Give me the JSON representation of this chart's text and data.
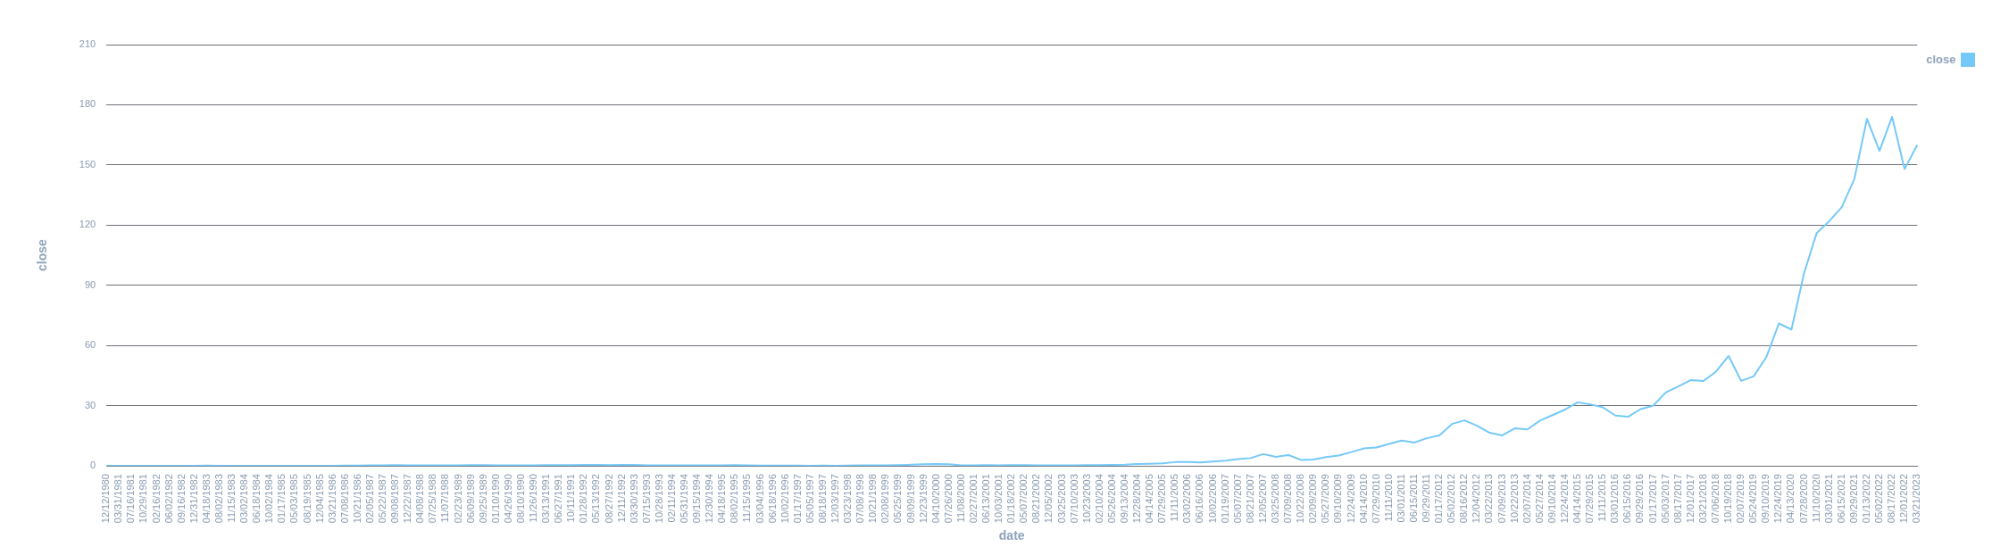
{
  "chart_data": {
    "type": "line",
    "xlabel": "date",
    "ylabel": "close",
    "categories": [
      "12/12/1980",
      "03/31/1981",
      "07/16/1981",
      "10/29/1981",
      "02/16/1982",
      "06/02/1982",
      "09/16/1982",
      "12/31/1982",
      "04/18/1983",
      "08/02/1983",
      "11/15/1983",
      "03/02/1984",
      "06/18/1984",
      "10/02/1984",
      "01/17/1985",
      "05/03/1985",
      "08/19/1985",
      "12/04/1985",
      "03/21/1986",
      "07/08/1986",
      "10/21/1986",
      "02/05/1987",
      "05/22/1987",
      "09/08/1987",
      "12/22/1987",
      "04/08/1988",
      "07/25/1988",
      "11/07/1988",
      "02/23/1989",
      "06/09/1989",
      "09/25/1989",
      "01/10/1990",
      "04/26/1990",
      "08/10/1990",
      "11/26/1990",
      "03/13/1991",
      "06/27/1991",
      "10/11/1991",
      "01/28/1992",
      "05/13/1992",
      "08/27/1992",
      "12/11/1992",
      "03/30/1993",
      "07/15/1993",
      "10/28/1993",
      "02/11/1994",
      "05/31/1994",
      "09/15/1994",
      "12/30/1994",
      "04/18/1995",
      "08/02/1995",
      "11/15/1995",
      "03/04/1996",
      "06/18/1996",
      "10/02/1996",
      "01/17/1997",
      "05/05/1997",
      "08/18/1997",
      "12/03/1997",
      "03/23/1998",
      "07/08/1998",
      "10/21/1998",
      "02/08/1999",
      "05/25/1999",
      "09/09/1999",
      "12/23/1999",
      "04/10/2000",
      "07/26/2000",
      "11/08/2000",
      "02/27/2001",
      "06/13/2001",
      "10/03/2001",
      "01/18/2002",
      "05/07/2002",
      "08/21/2002",
      "12/05/2002",
      "03/25/2003",
      "07/10/2003",
      "10/23/2003",
      "02/10/2004",
      "05/26/2004",
      "09/13/2004",
      "12/28/2004",
      "04/14/2005",
      "07/29/2005",
      "11/11/2005",
      "03/02/2006",
      "06/16/2006",
      "10/02/2006",
      "01/19/2007",
      "05/07/2007",
      "08/21/2007",
      "12/05/2007",
      "03/25/2008",
      "07/09/2008",
      "10/22/2008",
      "02/09/2009",
      "05/27/2009",
      "09/10/2009",
      "12/24/2009",
      "04/14/2010",
      "07/29/2010",
      "11/11/2010",
      "03/01/2011",
      "06/15/2011",
      "09/29/2011",
      "01/17/2012",
      "05/02/2012",
      "08/16/2012",
      "12/04/2012",
      "03/22/2013",
      "07/09/2013",
      "10/22/2013",
      "02/07/2014",
      "05/27/2014",
      "09/10/2014",
      "12/24/2014",
      "04/14/2015",
      "07/29/2015",
      "11/11/2015",
      "03/01/2016",
      "06/15/2016",
      "09/29/2016",
      "01/17/2017",
      "05/03/2017",
      "08/17/2017",
      "12/01/2017",
      "03/21/2018",
      "07/06/2018",
      "10/19/2018",
      "02/07/2019",
      "05/24/2019",
      "09/10/2019",
      "12/24/2019",
      "04/13/2020",
      "07/28/2020",
      "11/10/2020",
      "03/01/2021",
      "06/15/2021",
      "09/29/2021",
      "01/13/2022",
      "05/02/2022",
      "08/17/2022",
      "12/01/2022",
      "03/21/2023"
    ],
    "series": [
      {
        "name": "close",
        "color": "#75c9f8",
        "values": [
          0.1,
          0.1,
          0.1,
          0.1,
          0.1,
          0.1,
          0.1,
          0.1,
          0.2,
          0.1,
          0.1,
          0.1,
          0.1,
          0.1,
          0.1,
          0.1,
          0.1,
          0.1,
          0.1,
          0.2,
          0.2,
          0.3,
          0.3,
          0.4,
          0.3,
          0.3,
          0.3,
          0.3,
          0.3,
          0.4,
          0.4,
          0.3,
          0.3,
          0.3,
          0.3,
          0.4,
          0.4,
          0.4,
          0.5,
          0.5,
          0.4,
          0.5,
          0.5,
          0.3,
          0.3,
          0.3,
          0.3,
          0.3,
          0.3,
          0.3,
          0.4,
          0.3,
          0.2,
          0.2,
          0.2,
          0.2,
          0.1,
          0.2,
          0.1,
          0.2,
          0.3,
          0.3,
          0.3,
          0.4,
          0.6,
          0.8,
          1.0,
          0.8,
          0.3,
          0.3,
          0.4,
          0.3,
          0.4,
          0.4,
          0.3,
          0.3,
          0.3,
          0.3,
          0.4,
          0.4,
          0.5,
          0.6,
          1.0,
          1.1,
          1.3,
          1.9,
          2.0,
          1.7,
          2.2,
          2.6,
          3.4,
          3.9,
          5.9,
          4.5,
          5.4,
          3.0,
          3.2,
          4.4,
          5.2,
          6.9,
          8.7,
          9.2,
          11.0,
          12.6,
          11.6,
          13.8,
          15.2,
          20.9,
          22.7,
          20.0,
          16.5,
          15.2,
          18.7,
          18.2,
          22.6,
          25.3,
          28.1,
          31.7,
          30.7,
          29.2,
          25.1,
          24.5,
          28.3,
          30.0,
          36.6,
          39.6,
          42.8,
          42.3,
          47,
          54.8,
          42.4,
          44.7,
          54.2,
          71,
          68,
          96,
          116,
          122,
          129,
          143,
          173,
          157,
          174,
          148,
          160
        ]
      }
    ],
    "ylim": [
      0,
      210
    ],
    "yticks": [
      0,
      30,
      60,
      90,
      120,
      150,
      180,
      210
    ],
    "grid": "y",
    "legend": "top right",
    "marker": "none",
    "line_style": "solid"
  }
}
